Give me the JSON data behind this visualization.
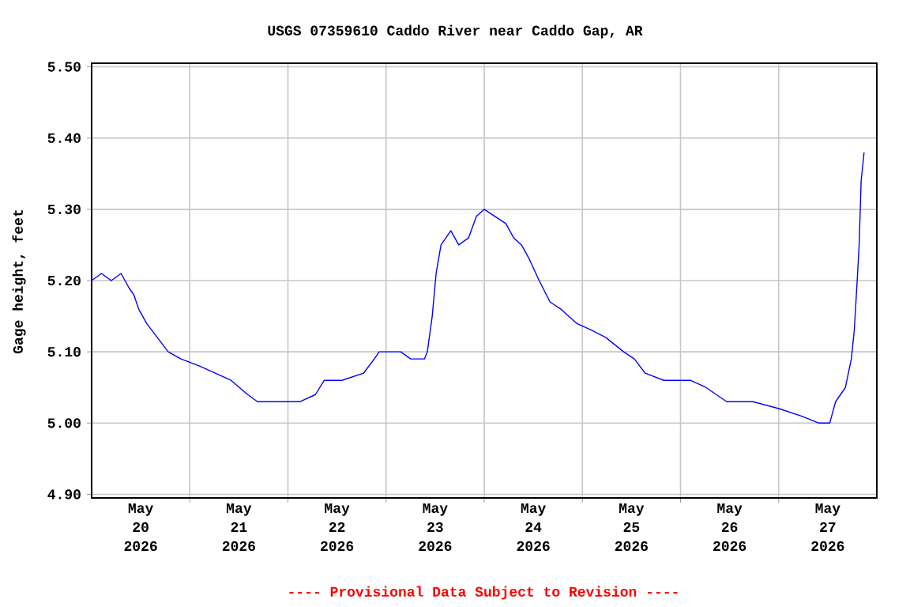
{
  "chart_data": {
    "type": "line",
    "title": "USGS 07359610 Caddo River near Caddo Gap, AR",
    "ylabel": "Gage height, feet",
    "annotations": [
      "---- Provisional Data Subject to Revision ----"
    ],
    "x": [
      "2026-05-20T00:00",
      "2026-05-20T02:24",
      "2026-05-20T04:48",
      "2026-05-20T07:12",
      "2026-05-20T09:07",
      "2026-05-20T10:19",
      "2026-05-20T11:31",
      "2026-05-20T13:26",
      "2026-05-20T16:05",
      "2026-05-20T18:43",
      "2026-05-20T21:50",
      "2026-05-21T02:24",
      "2026-05-21T06:14",
      "2026-05-21T10:05",
      "2026-05-21T14:10",
      "2026-05-21T16:34",
      "2026-05-21T20:24",
      "2026-05-22T02:53",
      "2026-05-22T06:43",
      "2026-05-22T08:53",
      "2026-05-22T13:12",
      "2026-05-22T18:29",
      "2026-05-22T21:07",
      "2026-05-22T22:19",
      "2026-05-23T03:36",
      "2026-05-23T06:00",
      "2026-05-23T09:22",
      "2026-05-23T10:05",
      "2026-05-23T11:17",
      "2026-05-23T12:14",
      "2026-05-23T13:26",
      "2026-05-23T15:50",
      "2026-05-23T17:46",
      "2026-05-23T20:10",
      "2026-05-23T22:05",
      "2026-05-24T00:00",
      "2026-05-24T02:38",
      "2026-05-24T05:17",
      "2026-05-24T07:12",
      "2026-05-24T09:07",
      "2026-05-24T11:02",
      "2026-05-24T13:26",
      "2026-05-24T16:05",
      "2026-05-24T18:43",
      "2026-05-24T22:34",
      "2026-05-25T02:24",
      "2026-05-25T05:46",
      "2026-05-25T10:05",
      "2026-05-25T12:43",
      "2026-05-25T15:22",
      "2026-05-25T19:55",
      "2026-05-26T02:24",
      "2026-05-26T06:14",
      "2026-05-26T11:17",
      "2026-05-26T17:46",
      "2026-05-27T00:14",
      "2026-05-27T05:31",
      "2026-05-27T09:50",
      "2026-05-27T12:29",
      "2026-05-27T13:55",
      "2026-05-27T16:19",
      "2026-05-27T17:46",
      "2026-05-27T18:29",
      "2026-05-27T19:12",
      "2026-05-27T19:41",
      "2026-05-27T20:10",
      "2026-05-27T20:53"
    ],
    "series": [
      {
        "color": "#0000ff",
        "values": [
          5.2,
          5.21,
          5.2,
          5.21,
          5.19,
          5.18,
          5.16,
          5.14,
          5.12,
          5.1,
          5.09,
          5.08,
          5.07,
          5.06,
          5.04,
          5.03,
          5.03,
          5.03,
          5.04,
          5.06,
          5.06,
          5.07,
          5.09,
          5.1,
          5.1,
          5.09,
          5.09,
          5.1,
          5.15,
          5.21,
          5.25,
          5.27,
          5.25,
          5.26,
          5.29,
          5.3,
          5.29,
          5.28,
          5.26,
          5.25,
          5.23,
          5.2,
          5.17,
          5.16,
          5.14,
          5.13,
          5.12,
          5.1,
          5.09,
          5.07,
          5.06,
          5.06,
          5.05,
          5.03,
          5.03,
          5.02,
          5.01,
          5.0,
          5.0,
          5.03,
          5.05,
          5.09,
          5.13,
          5.2,
          5.25,
          5.34,
          5.38
        ]
      }
    ],
    "xlim": [
      "2026-05-20T00:00",
      "2026-05-28T00:00"
    ],
    "xticks": [
      {
        "value": "2026-05-20T12:00",
        "label": "May 20 2026"
      },
      {
        "value": "2026-05-21T00:00",
        "label": null
      },
      {
        "value": "2026-05-21T12:00",
        "label": "May 21 2026"
      },
      {
        "value": "2026-05-22T00:00",
        "label": null
      },
      {
        "value": "2026-05-22T12:00",
        "label": "May 22 2026"
      },
      {
        "value": "2026-05-23T00:00",
        "label": null
      },
      {
        "value": "2026-05-23T12:00",
        "label": "May 23 2026"
      },
      {
        "value": "2026-05-24T00:00",
        "label": null
      },
      {
        "value": "2026-05-24T12:00",
        "label": "May 24 2026"
      },
      {
        "value": "2026-05-25T00:00",
        "label": null
      },
      {
        "value": "2026-05-25T12:00",
        "label": "May 25 2026"
      },
      {
        "value": "2026-05-26T00:00",
        "label": null
      },
      {
        "value": "2026-05-26T12:00",
        "label": "May 26 2026"
      },
      {
        "value": "2026-05-27T00:00",
        "label": null
      },
      {
        "value": "2026-05-27T12:00",
        "label": "May 27 2026"
      }
    ],
    "ylim": [
      4.895,
      5.505
    ],
    "yticks": [
      {
        "value": 4.9,
        "label": "4.90"
      },
      {
        "value": 5.0,
        "label": "5.00"
      },
      {
        "value": 5.1,
        "label": "5.10"
      },
      {
        "value": 5.2,
        "label": "5.20"
      },
      {
        "value": 5.3,
        "label": "5.30"
      },
      {
        "value": 5.4,
        "label": "5.40"
      },
      {
        "value": 5.5,
        "label": "5.50"
      }
    ],
    "grid": true
  }
}
